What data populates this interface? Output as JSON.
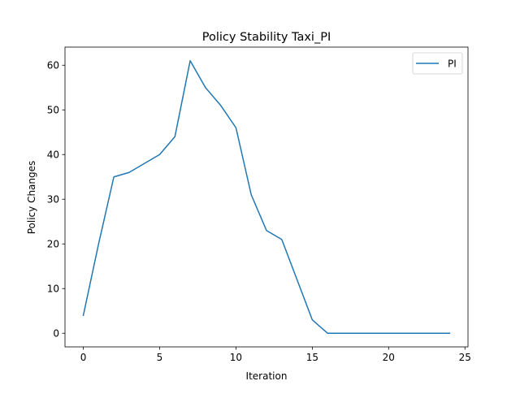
{
  "chart_data": {
    "type": "line",
    "title": "Policy Stability Taxi_PI",
    "xlabel": "Iteration",
    "ylabel": "Policy Changes",
    "xlim": [
      -1.2,
      25.2
    ],
    "ylim": [
      -3.05,
      64.05
    ],
    "xticks": [
      0,
      5,
      10,
      15,
      20,
      25
    ],
    "yticks": [
      0,
      10,
      20,
      30,
      40,
      50,
      60
    ],
    "grid": false,
    "legend_position": "top-right",
    "series": [
      {
        "name": "PI",
        "color": "#1f77b4",
        "x": [
          0,
          1,
          2,
          3,
          4,
          5,
          6,
          7,
          8,
          9,
          10,
          11,
          12,
          13,
          14,
          15,
          16,
          17,
          18,
          19,
          20,
          21,
          22,
          23,
          24
        ],
        "y": [
          4,
          20,
          35,
          36,
          38,
          40,
          44,
          61,
          55,
          51,
          46,
          31,
          23,
          21,
          12,
          3,
          0,
          0,
          0,
          0,
          0,
          0,
          0,
          0,
          0
        ]
      }
    ]
  }
}
